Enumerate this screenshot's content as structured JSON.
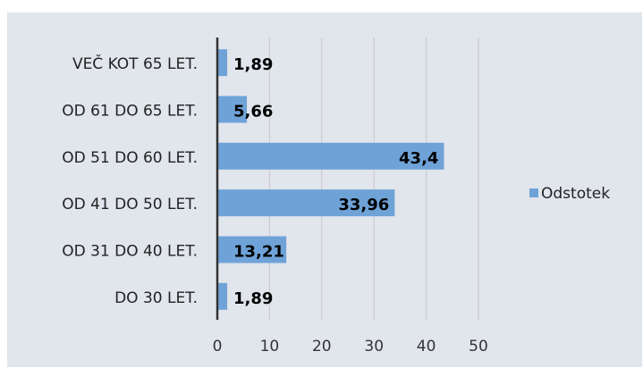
{
  "chart_data": {
    "type": "barh",
    "categories": [
      "VEČ KOT 65 LET.",
      "OD 61 DO 65 LET.",
      "OD 51 DO 60 LET.",
      "OD 41 DO 50 LET.",
      "OD 31 DO 40 LET.",
      "DO 30 LET."
    ],
    "series": [
      {
        "name": "Odstotek",
        "color": "#6fa3d8",
        "values": [
          1.89,
          5.66,
          43.4,
          33.96,
          13.21,
          1.89
        ],
        "value_labels": [
          "1,89",
          "5,66",
          "43,4",
          "33,96",
          "13,21",
          "1,89"
        ]
      }
    ],
    "xlim": [
      0,
      50
    ],
    "xticks": [
      0,
      10,
      20,
      30,
      40,
      50
    ],
    "grid": true,
    "legend": "right"
  }
}
